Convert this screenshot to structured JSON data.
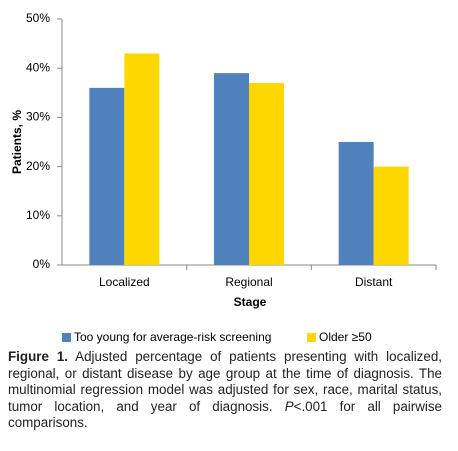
{
  "chart_data": {
    "type": "bar",
    "categories": [
      "Localized",
      "Regional",
      "Distant"
    ],
    "series": [
      {
        "name": "Too young for average-risk screening",
        "color": "#4f81bd",
        "values": [
          36,
          39,
          25
        ]
      },
      {
        "name": "Older ≥50",
        "color": "#ffd700",
        "values": [
          43,
          37,
          20
        ]
      }
    ],
    "ylim": [
      0,
      50
    ],
    "yticks": [
      {
        "value": 0,
        "label": "0%"
      },
      {
        "value": 10,
        "label": "10%"
      },
      {
        "value": 20,
        "label": "20%"
      },
      {
        "value": 30,
        "label": "30%"
      },
      {
        "value": 40,
        "label": "40%"
      },
      {
        "value": 50,
        "label": "50%"
      }
    ],
    "ylabel": "Patients, %",
    "xlabel": "Stage",
    "grid": false,
    "legend": "bottom"
  },
  "caption": {
    "label": "Figure 1.",
    "text": " Adjusted percentage of patients presenting with localized, regional, or distant disease by age group at the time of diagnosis. The multinomial regression model was adjusted for sex, race, marital status, tumor location, and year of diagnosis. ",
    "p": "P",
    "rest": "<.001 for all pairwise comparisons."
  }
}
